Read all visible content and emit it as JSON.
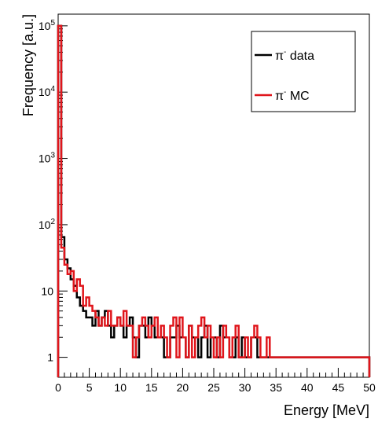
{
  "chart_data": {
    "type": "histogram",
    "xlabel": "Energy [MeV]",
    "ylabel": "Frequency [a.u.]",
    "xlim": [
      0,
      50
    ],
    "ylim": [
      0.5,
      150000
    ],
    "y_scale": "log",
    "bin_width": 0.5,
    "x_ticks": [
      "0",
      "5",
      "10",
      "15",
      "20",
      "25",
      "30",
      "35",
      "40",
      "45",
      "50"
    ],
    "y_ticks": [
      {
        "base": "1",
        "exp": ""
      },
      {
        "base": "10",
        "exp": ""
      },
      {
        "base": "10",
        "exp": "2"
      },
      {
        "base": "10",
        "exp": "3"
      },
      {
        "base": "10",
        "exp": "4"
      },
      {
        "base": "10",
        "exp": "5"
      }
    ],
    "legend_position": "top-right",
    "series": [
      {
        "name": "π⁻ data",
        "label_base": "π",
        "label_sup": "-",
        "label_rest": " data",
        "color": "#000000",
        "values": [
          100000,
          65,
          30,
          22,
          15,
          12,
          8,
          6,
          5,
          4,
          4,
          3,
          5,
          3,
          4,
          5,
          3,
          2,
          3,
          4,
          3,
          2,
          3,
          4,
          2,
          1,
          3,
          3,
          2,
          4,
          3,
          2,
          2,
          2,
          1,
          1,
          2,
          2,
          3,
          2,
          2,
          1,
          3,
          2,
          2,
          1,
          2,
          3,
          1,
          2,
          2,
          1,
          3,
          2,
          2,
          1,
          1,
          2,
          1,
          2,
          1,
          1,
          2,
          2,
          1,
          1,
          1,
          1,
          1,
          1,
          1,
          1,
          1,
          1,
          1,
          1,
          1,
          1,
          1,
          1,
          1,
          1,
          1,
          1,
          1,
          1,
          1,
          1,
          1,
          1,
          1,
          1,
          1,
          1,
          1,
          1,
          1,
          1,
          1,
          1
        ]
      },
      {
        "name": "π⁻ MC",
        "label_base": "π",
        "label_sup": "-",
        "label_rest": " MC",
        "color": "#e0151b",
        "values": [
          100000,
          45,
          25,
          18,
          20,
          10,
          15,
          12,
          6,
          8,
          6,
          5,
          4,
          3,
          4,
          3,
          5,
          3,
          3,
          4,
          3,
          5,
          3,
          3,
          1,
          2,
          3,
          4,
          3,
          2,
          3,
          4,
          2,
          3,
          2,
          1,
          3,
          4,
          1,
          4,
          2,
          1,
          3,
          1,
          2,
          3,
          4,
          2,
          3,
          2,
          1,
          2,
          1,
          3,
          2,
          1,
          2,
          3,
          1,
          1,
          2,
          1,
          2,
          3,
          2,
          1,
          1,
          2,
          1,
          1,
          1,
          1,
          1,
          1,
          1,
          1,
          1,
          1,
          1,
          1,
          1,
          1,
          1,
          1,
          1,
          1,
          1,
          1,
          1,
          1,
          1,
          1,
          1,
          1,
          1,
          1,
          1,
          1,
          1,
          1
        ]
      }
    ]
  }
}
